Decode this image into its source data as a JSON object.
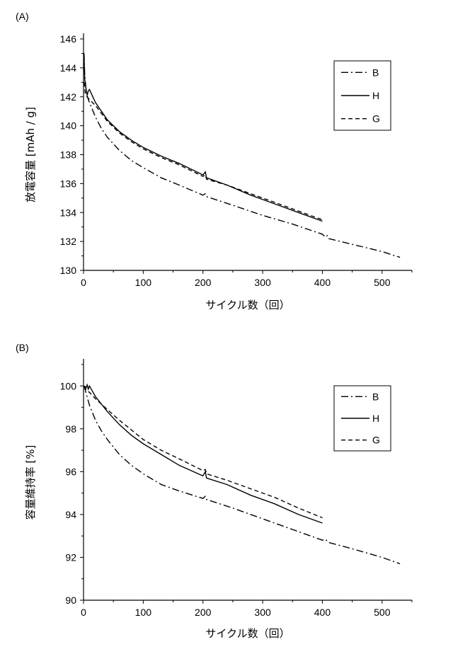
{
  "chart_data": [
    {
      "panel_label": "(A)",
      "type": "line",
      "xlabel": "サイクル数（回）",
      "ylabel": "放電容量 [mAh / g]",
      "xlim": [
        0,
        550
      ],
      "ylim": [
        130,
        146
      ],
      "xticks": [
        0,
        100,
        200,
        300,
        400,
        500
      ],
      "yticks": [
        130,
        132,
        134,
        136,
        138,
        140,
        142,
        144,
        146
      ],
      "legend": "top-right",
      "grid": false,
      "series": [
        {
          "name": "B",
          "style": "dashdot",
          "points": [
            [
              1,
              145
            ],
            [
              2,
              143.5
            ],
            [
              5,
              142.2
            ],
            [
              10,
              141.6
            ],
            [
              20,
              140.6
            ],
            [
              30,
              139.8
            ],
            [
              40,
              139.2
            ],
            [
              60,
              138.3
            ],
            [
              80,
              137.6
            ],
            [
              100,
              137.1
            ],
            [
              130,
              136.4
            ],
            [
              160,
              135.9
            ],
            [
              200,
              135.2
            ],
            [
              204,
              135.3
            ],
            [
              206,
              135.1
            ],
            [
              250,
              134.5
            ],
            [
              300,
              133.8
            ],
            [
              350,
              133.2
            ],
            [
              400,
              132.5
            ],
            [
              405,
              132.3
            ],
            [
              408,
              132.4
            ],
            [
              410,
              132.2
            ],
            [
              450,
              131.8
            ],
            [
              500,
              131.3
            ],
            [
              530,
              130.9
            ]
          ]
        },
        {
          "name": "H",
          "style": "solid",
          "points": [
            [
              1,
              144.6
            ],
            [
              2,
              143.2
            ],
            [
              4,
              142.6
            ],
            [
              6,
              142.1
            ],
            [
              8,
              142.4
            ],
            [
              10,
              142.5
            ],
            [
              20,
              141.6
            ],
            [
              40,
              140.4
            ],
            [
              60,
              139.6
            ],
            [
              80,
              139.0
            ],
            [
              100,
              138.5
            ],
            [
              130,
              137.9
            ],
            [
              160,
              137.4
            ],
            [
              200,
              136.6
            ],
            [
              204,
              136.8
            ],
            [
              206,
              136.4
            ],
            [
              240,
              135.9
            ],
            [
              280,
              135.2
            ],
            [
              320,
              134.6
            ],
            [
              360,
              134.0
            ],
            [
              400,
              133.4
            ]
          ]
        },
        {
          "name": "G",
          "style": "dashed",
          "points": [
            [
              1,
              143
            ],
            [
              3,
              142.2
            ],
            [
              6,
              142
            ],
            [
              10,
              141.8
            ],
            [
              20,
              141.4
            ],
            [
              40,
              140.3
            ],
            [
              60,
              139.5
            ],
            [
              80,
              138.9
            ],
            [
              100,
              138.4
            ],
            [
              130,
              137.8
            ],
            [
              160,
              137.3
            ],
            [
              200,
              136.5
            ],
            [
              204,
              136.6
            ],
            [
              206,
              136.3
            ],
            [
              240,
              135.9
            ],
            [
              280,
              135.3
            ],
            [
              320,
              134.7
            ],
            [
              360,
              134.1
            ],
            [
              400,
              133.5
            ]
          ]
        }
      ]
    },
    {
      "panel_label": "(B)",
      "type": "line",
      "xlabel": "サイクル数（回）",
      "ylabel": "容量維持率 [%]",
      "xlim": [
        0,
        550
      ],
      "ylim": [
        90,
        101
      ],
      "xticks": [
        0,
        100,
        200,
        300,
        400,
        500
      ],
      "yticks": [
        90,
        92,
        94,
        96,
        98,
        100
      ],
      "legend": "top-right",
      "grid": false,
      "series": [
        {
          "name": "B",
          "style": "dashdot",
          "points": [
            [
              1,
              100
            ],
            [
              5,
              99.6
            ],
            [
              10,
              99.1
            ],
            [
              20,
              98.4
            ],
            [
              30,
              97.9
            ],
            [
              40,
              97.5
            ],
            [
              60,
              96.8
            ],
            [
              80,
              96.3
            ],
            [
              100,
              95.9
            ],
            [
              130,
              95.4
            ],
            [
              160,
              95.1
            ],
            [
              200,
              94.75
            ],
            [
              204,
              94.85
            ],
            [
              206,
              94.7
            ],
            [
              250,
              94.3
            ],
            [
              300,
              93.8
            ],
            [
              350,
              93.3
            ],
            [
              400,
              92.8
            ],
            [
              405,
              92.85
            ],
            [
              410,
              92.7
            ],
            [
              450,
              92.4
            ],
            [
              500,
              92.0
            ],
            [
              530,
              91.7
            ]
          ]
        },
        {
          "name": "H",
          "style": "solid",
          "points": [
            [
              2,
              100
            ],
            [
              4,
              99.9
            ],
            [
              6,
              100.05
            ],
            [
              8,
              99.85
            ],
            [
              10,
              100
            ],
            [
              20,
              99.5
            ],
            [
              40,
              98.8
            ],
            [
              60,
              98.2
            ],
            [
              80,
              97.7
            ],
            [
              100,
              97.3
            ],
            [
              130,
              96.8
            ],
            [
              160,
              96.3
            ],
            [
              200,
              95.8
            ],
            [
              204,
              96.0
            ],
            [
              206,
              95.7
            ],
            [
              240,
              95.4
            ],
            [
              280,
              94.9
            ],
            [
              320,
              94.5
            ],
            [
              360,
              94.0
            ],
            [
              400,
              93.6
            ]
          ]
        },
        {
          "name": "G",
          "style": "dashed",
          "points": [
            [
              1,
              100
            ],
            [
              5,
              99.8
            ],
            [
              10,
              99.7
            ],
            [
              20,
              99.4
            ],
            [
              40,
              98.9
            ],
            [
              60,
              98.4
            ],
            [
              80,
              97.95
            ],
            [
              100,
              97.5
            ],
            [
              130,
              97.0
            ],
            [
              160,
              96.6
            ],
            [
              200,
              96.05
            ],
            [
              204,
              96.1
            ],
            [
              206,
              95.9
            ],
            [
              240,
              95.6
            ],
            [
              280,
              95.2
            ],
            [
              320,
              94.8
            ],
            [
              360,
              94.3
            ],
            [
              400,
              93.85
            ]
          ]
        }
      ]
    }
  ]
}
